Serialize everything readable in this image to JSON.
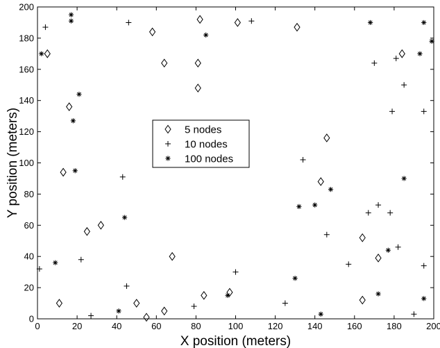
{
  "chart_data": {
    "type": "scatter",
    "xlabel": "X position (meters)",
    "ylabel": "Y position (meters)",
    "xlim": [
      0,
      200
    ],
    "ylim": [
      0,
      200
    ],
    "xticks": [
      0,
      20,
      40,
      60,
      80,
      100,
      120,
      140,
      160,
      180,
      200
    ],
    "yticks": [
      0,
      20,
      40,
      60,
      80,
      100,
      120,
      140,
      160,
      180,
      200
    ],
    "grid": false,
    "legend_position": "center-left",
    "series": [
      {
        "name": "5 nodes",
        "marker": "diamond",
        "points": [
          [
            5,
            170
          ],
          [
            16,
            136
          ],
          [
            13,
            94
          ],
          [
            25,
            56
          ],
          [
            32,
            60
          ],
          [
            11,
            10
          ],
          [
            58,
            184
          ],
          [
            64,
            164
          ],
          [
            68,
            40
          ],
          [
            50,
            10
          ],
          [
            55,
            1
          ],
          [
            64,
            5
          ],
          [
            82,
            192
          ],
          [
            81,
            164
          ],
          [
            81,
            148
          ],
          [
            84,
            15
          ],
          [
            97,
            17
          ],
          [
            101,
            190
          ],
          [
            131,
            187
          ],
          [
            146,
            116
          ],
          [
            143,
            88
          ],
          [
            164,
            52
          ],
          [
            172,
            39
          ],
          [
            164,
            12
          ],
          [
            184,
            170
          ]
        ]
      },
      {
        "name": "10 nodes",
        "marker": "plus",
        "points": [
          [
            4,
            187
          ],
          [
            1,
            32
          ],
          [
            22,
            38
          ],
          [
            27,
            2
          ],
          [
            43,
            91
          ],
          [
            46,
            190
          ],
          [
            45,
            21
          ],
          [
            79,
            8
          ],
          [
            100,
            30
          ],
          [
            108,
            191
          ],
          [
            125,
            10
          ],
          [
            134,
            102
          ],
          [
            146,
            54
          ],
          [
            157,
            35
          ],
          [
            167,
            68
          ],
          [
            170,
            164
          ],
          [
            172,
            73
          ],
          [
            178,
            68
          ],
          [
            179,
            133
          ],
          [
            181,
            167
          ],
          [
            182,
            46
          ],
          [
            185,
            150
          ],
          [
            195,
            133
          ],
          [
            195,
            34
          ],
          [
            190,
            3
          ]
        ]
      },
      {
        "name": "100 nodes",
        "marker": "star",
        "points": [
          [
            17,
            195
          ],
          [
            17,
            191
          ],
          [
            2,
            170
          ],
          [
            21,
            144
          ],
          [
            18,
            127
          ],
          [
            19,
            95
          ],
          [
            9,
            36
          ],
          [
            44,
            65
          ],
          [
            41,
            5
          ],
          [
            85,
            182
          ],
          [
            96,
            15
          ],
          [
            130,
            26
          ],
          [
            132,
            72
          ],
          [
            140,
            73
          ],
          [
            148,
            83
          ],
          [
            143,
            3
          ],
          [
            168,
            190
          ],
          [
            172,
            16
          ],
          [
            177,
            44
          ],
          [
            185,
            90
          ],
          [
            193,
            170
          ],
          [
            195,
            190
          ],
          [
            199,
            178
          ],
          [
            195,
            13
          ]
        ]
      }
    ]
  }
}
